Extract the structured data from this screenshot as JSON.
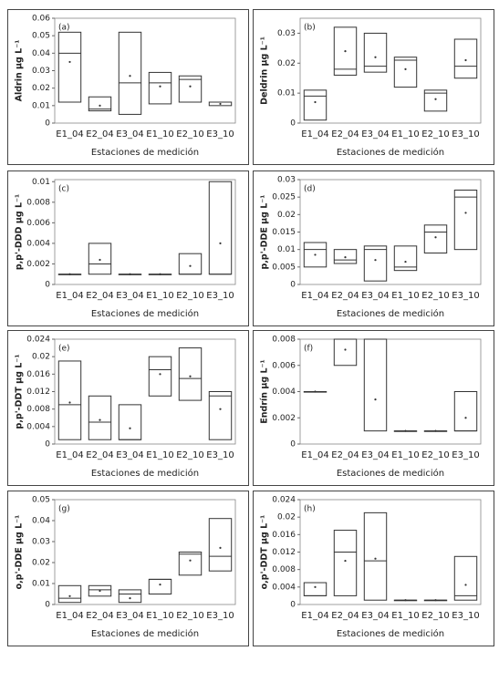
{
  "chart_data": [
    {
      "type": "box",
      "panel_label": "(a)",
      "ylabel": "Aldrin µg L⁻¹",
      "xlabel": "Estaciones de medición",
      "color": "#333333",
      "categories": [
        "E1_04",
        "E2_04",
        "E3_04",
        "E1_10",
        "E2_10",
        "E3_10"
      ],
      "low": [
        0.012,
        0.007,
        0.005,
        0.011,
        0.012,
        0.01
      ],
      "high": [
        0.052,
        0.015,
        0.052,
        0.029,
        0.027,
        0.012
      ],
      "median": [
        0.04,
        0.008,
        0.023,
        0.023,
        0.025,
        0.012
      ],
      "mean": [
        0.035,
        0.01,
        0.027,
        0.021,
        0.021,
        0.011
      ],
      "ylim": [
        0,
        0.06
      ],
      "yticks": [
        0,
        0.01,
        0.02,
        0.03,
        0.04,
        0.05,
        0.06
      ]
    },
    {
      "type": "box",
      "panel_label": "(b)",
      "ylabel": "Deldrin µg L⁻¹",
      "xlabel": "Estaciones de medición",
      "color": "#333333",
      "categories": [
        "E1_04",
        "E2_04",
        "E3_04",
        "E1_10",
        "E2_10",
        "E3_10"
      ],
      "low": [
        0.001,
        0.016,
        0.017,
        0.012,
        0.004,
        0.015
      ],
      "high": [
        0.011,
        0.032,
        0.03,
        0.022,
        0.011,
        0.028
      ],
      "median": [
        0.009,
        0.018,
        0.019,
        0.021,
        0.01,
        0.019
      ],
      "mean": [
        0.007,
        0.024,
        0.022,
        0.018,
        0.008,
        0.021
      ],
      "ylim": [
        0,
        0.035
      ],
      "yticks": [
        0,
        0.01,
        0.02,
        0.03
      ]
    },
    {
      "type": "box",
      "panel_label": "(c)",
      "ylabel": "p,p'-DDD µg L⁻¹",
      "xlabel": "Estaciones de medición",
      "color": "#333333",
      "categories": [
        "E1_04",
        "E2_04",
        "E3_04",
        "E1_10",
        "E2_10",
        "E3_10"
      ],
      "low": [
        0.001,
        0.001,
        0.001,
        0.001,
        0.001,
        0.001
      ],
      "high": [
        0.001,
        0.004,
        0.001,
        0.001,
        0.003,
        0.01
      ],
      "median": [
        0.001,
        0.002,
        0.001,
        0.001,
        0.001,
        0.001
      ],
      "mean": [
        0.001,
        0.0024,
        0.001,
        0.001,
        0.0018,
        0.004
      ],
      "ylim": [
        0,
        0.0102
      ],
      "yticks": [
        0,
        0.002,
        0.004,
        0.006,
        0.008,
        0.01
      ]
    },
    {
      "type": "box",
      "panel_label": "(d)",
      "ylabel": "p,p'-DDE µg L⁻¹",
      "xlabel": "Estaciones de medición",
      "color": "#333333",
      "categories": [
        "E1_04",
        "E2_04",
        "E3_04",
        "E1_10",
        "E2_10",
        "E3_10"
      ],
      "low": [
        0.005,
        0.006,
        0.001,
        0.004,
        0.009,
        0.01
      ],
      "high": [
        0.012,
        0.01,
        0.011,
        0.011,
        0.017,
        0.027
      ],
      "median": [
        0.01,
        0.007,
        0.01,
        0.005,
        0.015,
        0.025
      ],
      "mean": [
        0.0085,
        0.0078,
        0.007,
        0.0065,
        0.0135,
        0.0205
      ],
      "ylim": [
        0,
        0.03
      ],
      "yticks": [
        0,
        0.005,
        0.01,
        0.015,
        0.02,
        0.025,
        0.03
      ]
    },
    {
      "type": "box",
      "panel_label": "(e)",
      "ylabel": "p,p'-DDT µg L⁻¹",
      "xlabel": "Estaciones de medición",
      "color": "#333333",
      "categories": [
        "E1_04",
        "E2_04",
        "E3_04",
        "E1_10",
        "E2_10",
        "E3_10"
      ],
      "low": [
        0.001,
        0.001,
        0.001,
        0.011,
        0.01,
        0.001
      ],
      "high": [
        0.019,
        0.011,
        0.009,
        0.02,
        0.022,
        0.012
      ],
      "median": [
        0.009,
        0.005,
        0.001,
        0.017,
        0.015,
        0.011
      ],
      "mean": [
        0.0095,
        0.0055,
        0.0036,
        0.016,
        0.0155,
        0.008
      ],
      "ylim": [
        0,
        0.024
      ],
      "yticks": [
        0,
        0.004,
        0.008,
        0.012,
        0.016,
        0.02,
        0.024
      ]
    },
    {
      "type": "box",
      "panel_label": "(f)",
      "ylabel": "Endrín µg L⁻¹",
      "xlabel": "Estaciones de medición",
      "color": "#333333",
      "categories": [
        "E1_04",
        "E2_04",
        "E3_04",
        "E1_10",
        "E2_10",
        "E3_10"
      ],
      "low": [
        0.004,
        0.006,
        0.001,
        0.001,
        0.001,
        0.001
      ],
      "high": [
        0.004,
        0.008,
        0.008,
        0.001,
        0.001,
        0.004
      ],
      "median": [
        0.004,
        0.008,
        0.008,
        0.001,
        0.001,
        0.001
      ],
      "mean": [
        0.004,
        0.0072,
        0.0034,
        0.001,
        0.001,
        0.002
      ],
      "ylim": [
        0,
        0.008
      ],
      "yticks": [
        0,
        0.002,
        0.004,
        0.006,
        0.008
      ]
    },
    {
      "type": "box",
      "panel_label": "(g)",
      "ylabel": "o,p'-DDE µg L⁻¹",
      "xlabel": "Estaciones de medición",
      "color": "#333333",
      "categories": [
        "E1_04",
        "E2_04",
        "E3_04",
        "E1_10",
        "E2_10",
        "E3_10"
      ],
      "low": [
        0.001,
        0.004,
        0.001,
        0.005,
        0.014,
        0.016
      ],
      "high": [
        0.009,
        0.009,
        0.007,
        0.012,
        0.025,
        0.041
      ],
      "median": [
        0.003,
        0.007,
        0.005,
        0.012,
        0.024,
        0.023
      ],
      "mean": [
        0.004,
        0.0065,
        0.003,
        0.0095,
        0.021,
        0.027
      ],
      "ylim": [
        0,
        0.05
      ],
      "yticks": [
        0,
        0.01,
        0.02,
        0.03,
        0.04,
        0.05
      ]
    },
    {
      "type": "box",
      "panel_label": "(h)",
      "ylabel": "o,p'-DDT µg L⁻¹",
      "xlabel": "Estaciones de medición",
      "color": "#333333",
      "categories": [
        "E1_04",
        "E2_04",
        "E3_04",
        "E1_10",
        "E2_10",
        "E3_10"
      ],
      "low": [
        0.002,
        0.002,
        0.001,
        0.001,
        0.001,
        0.001
      ],
      "high": [
        0.005,
        0.017,
        0.021,
        0.001,
        0.001,
        0.011
      ],
      "median": [
        0.002,
        0.012,
        0.01,
        0.001,
        0.001,
        0.002
      ],
      "mean": [
        0.004,
        0.01,
        0.0105,
        0.001,
        0.001,
        0.0045
      ],
      "ylim": [
        0,
        0.024
      ],
      "yticks": [
        0,
        0.004,
        0.008,
        0.012,
        0.016,
        0.02,
        0.024
      ]
    }
  ]
}
